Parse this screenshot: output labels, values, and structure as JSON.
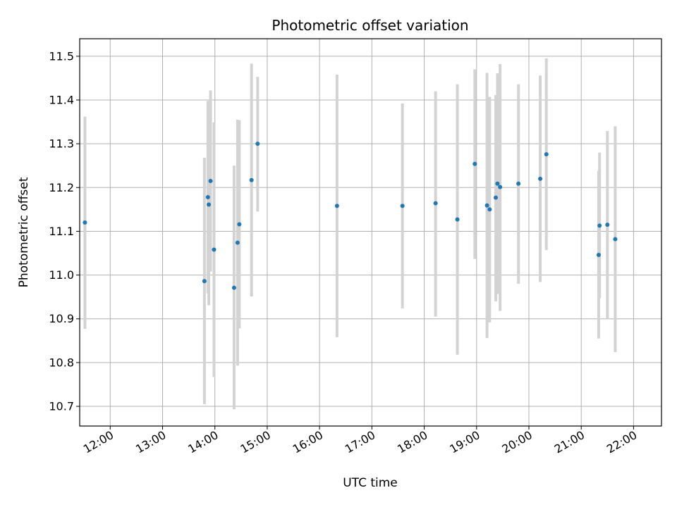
{
  "chart_data": {
    "type": "scatter",
    "title": "Photometric offset variation",
    "xlabel": "UTC time",
    "ylabel": "Photometric offset",
    "x_ticks": [
      "12:00",
      "13:00",
      "14:00",
      "15:00",
      "16:00",
      "17:00",
      "18:00",
      "19:00",
      "20:00",
      "21:00",
      "22:00"
    ],
    "y_ticks": [
      "10.7",
      "10.8",
      "10.9",
      "11.0",
      "11.1",
      "11.2",
      "11.3",
      "11.4",
      "11.5"
    ],
    "xlim": [
      "11:25",
      "22:32"
    ],
    "ylim": [
      10.655,
      11.54
    ],
    "grid": true,
    "colors": {
      "point": "#1f77b4",
      "errorbar": "#d3d3d3",
      "grid": "#b0b0b0"
    },
    "points": [
      {
        "time": "11:31",
        "y": 11.12,
        "err_low": 10.877,
        "err_high": 11.362
      },
      {
        "time": "13:48",
        "y": 10.986,
        "err_low": 10.705,
        "err_high": 11.268
      },
      {
        "time": "13:52",
        "y": 11.178,
        "err_low": 10.958,
        "err_high": 11.398
      },
      {
        "time": "13:53",
        "y": 11.161,
        "err_low": 10.931,
        "err_high": 11.391
      },
      {
        "time": "13:55",
        "y": 11.215,
        "err_low": 11.008,
        "err_high": 11.422
      },
      {
        "time": "13:59",
        "y": 11.058,
        "err_low": 10.767,
        "err_high": 11.349
      },
      {
        "time": "14:22",
        "y": 10.971,
        "err_low": 10.693,
        "err_high": 11.25
      },
      {
        "time": "14:26",
        "y": 11.074,
        "err_low": 10.793,
        "err_high": 11.355
      },
      {
        "time": "14:28",
        "y": 11.116,
        "err_low": 10.878,
        "err_high": 11.354
      },
      {
        "time": "14:42",
        "y": 11.217,
        "err_low": 10.951,
        "err_high": 11.483
      },
      {
        "time": "14:49",
        "y": 11.3,
        "err_low": 11.145,
        "err_high": 11.453
      },
      {
        "time": "16:20",
        "y": 11.158,
        "err_low": 10.858,
        "err_high": 11.458
      },
      {
        "time": "17:35",
        "y": 11.158,
        "err_low": 10.924,
        "err_high": 11.392
      },
      {
        "time": "18:13",
        "y": 11.164,
        "err_low": 10.905,
        "err_high": 11.42
      },
      {
        "time": "18:38",
        "y": 11.127,
        "err_low": 10.818,
        "err_high": 11.436
      },
      {
        "time": "18:58",
        "y": 11.254,
        "err_low": 11.037,
        "err_high": 11.47
      },
      {
        "time": "19:12",
        "y": 11.159,
        "err_low": 10.856,
        "err_high": 11.462
      },
      {
        "time": "19:15",
        "y": 11.15,
        "err_low": 10.892,
        "err_high": 11.407
      },
      {
        "time": "19:22",
        "y": 11.177,
        "err_low": 10.94,
        "err_high": 11.411
      },
      {
        "time": "19:24",
        "y": 11.209,
        "err_low": 10.957,
        "err_high": 11.461
      },
      {
        "time": "19:27",
        "y": 11.201,
        "err_low": 10.918,
        "err_high": 11.482
      },
      {
        "time": "19:48",
        "y": 11.209,
        "err_low": 10.98,
        "err_high": 11.436
      },
      {
        "time": "20:13",
        "y": 11.22,
        "err_low": 10.984,
        "err_high": 11.456
      },
      {
        "time": "20:20",
        "y": 11.276,
        "err_low": 11.057,
        "err_high": 11.495
      },
      {
        "time": "21:20",
        "y": 11.046,
        "err_low": 10.855,
        "err_high": 11.238
      },
      {
        "time": "21:21",
        "y": 11.113,
        "err_low": 10.947,
        "err_high": 11.28
      },
      {
        "time": "21:30",
        "y": 11.115,
        "err_low": 10.9,
        "err_high": 11.329
      },
      {
        "time": "21:39",
        "y": 11.082,
        "err_low": 10.824,
        "err_high": 11.34
      }
    ]
  }
}
